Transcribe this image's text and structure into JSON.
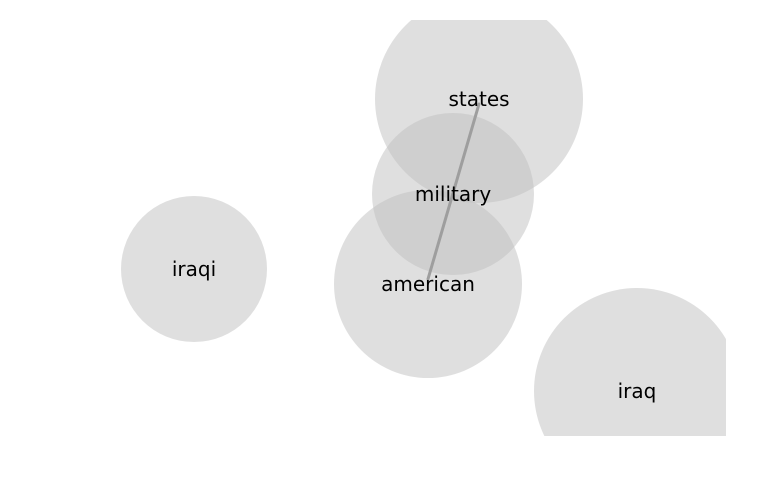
{
  "nodes": [
    {
      "id": "states",
      "label": "states"
    },
    {
      "id": "military",
      "label": "military"
    },
    {
      "id": "american",
      "label": "american"
    },
    {
      "id": "iraqi",
      "label": "iraqi"
    },
    {
      "id": "iraq",
      "label": "iraq"
    }
  ],
  "edges": [
    {
      "from": "states",
      "to": "american"
    }
  ],
  "colors": {
    "circle": "#bfbfbf",
    "edge": "#9e9e9e",
    "text": "#000000",
    "background": "#ffffff"
  }
}
